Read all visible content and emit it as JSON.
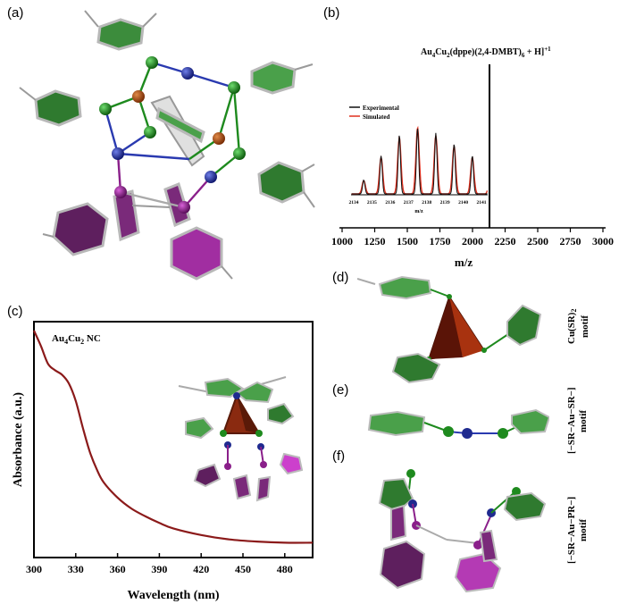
{
  "panels": {
    "a": "(a)",
    "b": "(b)",
    "c": "(c)",
    "d": "(d)",
    "e": "(e)",
    "f": "(f)"
  },
  "colors": {
    "gold": "#1f2a8f",
    "copper": "#a8470e",
    "sulfur": "#1e8a1e",
    "phosphorus": "#8a1f8a",
    "green_ring": "#2f7a2f",
    "purple_ring": "#7a2a7a",
    "curve": "#8b1a1a",
    "experimental": "#111111",
    "simulated": "#e0301e"
  },
  "ms": {
    "title_main": "Au",
    "title_sub1": "4",
    "title_mid": "Cu",
    "title_sub2": "2",
    "title_rest": "(dppe)(2,4-DMBT)",
    "title_sub3": "6",
    "title_end": " + H]",
    "title_sup": "+1",
    "xlabel": "m/z",
    "xticks": [
      "1000",
      "1250",
      "1500",
      "1750",
      "2000",
      "2250",
      "2500",
      "2750",
      "3000"
    ],
    "inset_legend_experimental": "Experimental",
    "inset_legend_simulated": "Simulated",
    "inset_xlabel": "m/z",
    "inset_ticks": [
      "2134",
      "2135",
      "2136",
      "2137",
      "2138",
      "2139",
      "2140",
      "2141"
    ]
  },
  "chart_data": {
    "type": "line",
    "xlabel": "Wavelength (nm)",
    "ylabel": "Absorbance (a.u.)",
    "annotation_main": "Au",
    "annotation_sub1": "4",
    "annotation_mid": "Cu",
    "annotation_sub2": "2",
    "annotation_end": " NC",
    "xlim": [
      300,
      500
    ],
    "x_ticks": [
      300,
      330,
      360,
      390,
      420,
      450,
      480
    ],
    "series": [
      {
        "x": [
          300,
          305,
          310,
          315,
          320,
          325,
          330,
          335,
          340,
          345,
          350,
          360,
          370,
          380,
          390,
          400,
          420,
          440,
          460,
          480,
          500
        ],
        "y": [
          1.0,
          0.93,
          0.85,
          0.82,
          0.8,
          0.76,
          0.68,
          0.56,
          0.45,
          0.37,
          0.31,
          0.24,
          0.19,
          0.155,
          0.125,
          0.1,
          0.07,
          0.05,
          0.04,
          0.035,
          0.035
        ]
      }
    ]
  },
  "motifs": {
    "d_main": "Cu(SR)",
    "d_sub": "2",
    "d_word": "motif",
    "e_main": "[−SR−Au−SR−]",
    "e_word": "motif",
    "f_main": "[−SR−Au−PR−]",
    "f_word": "motif"
  }
}
